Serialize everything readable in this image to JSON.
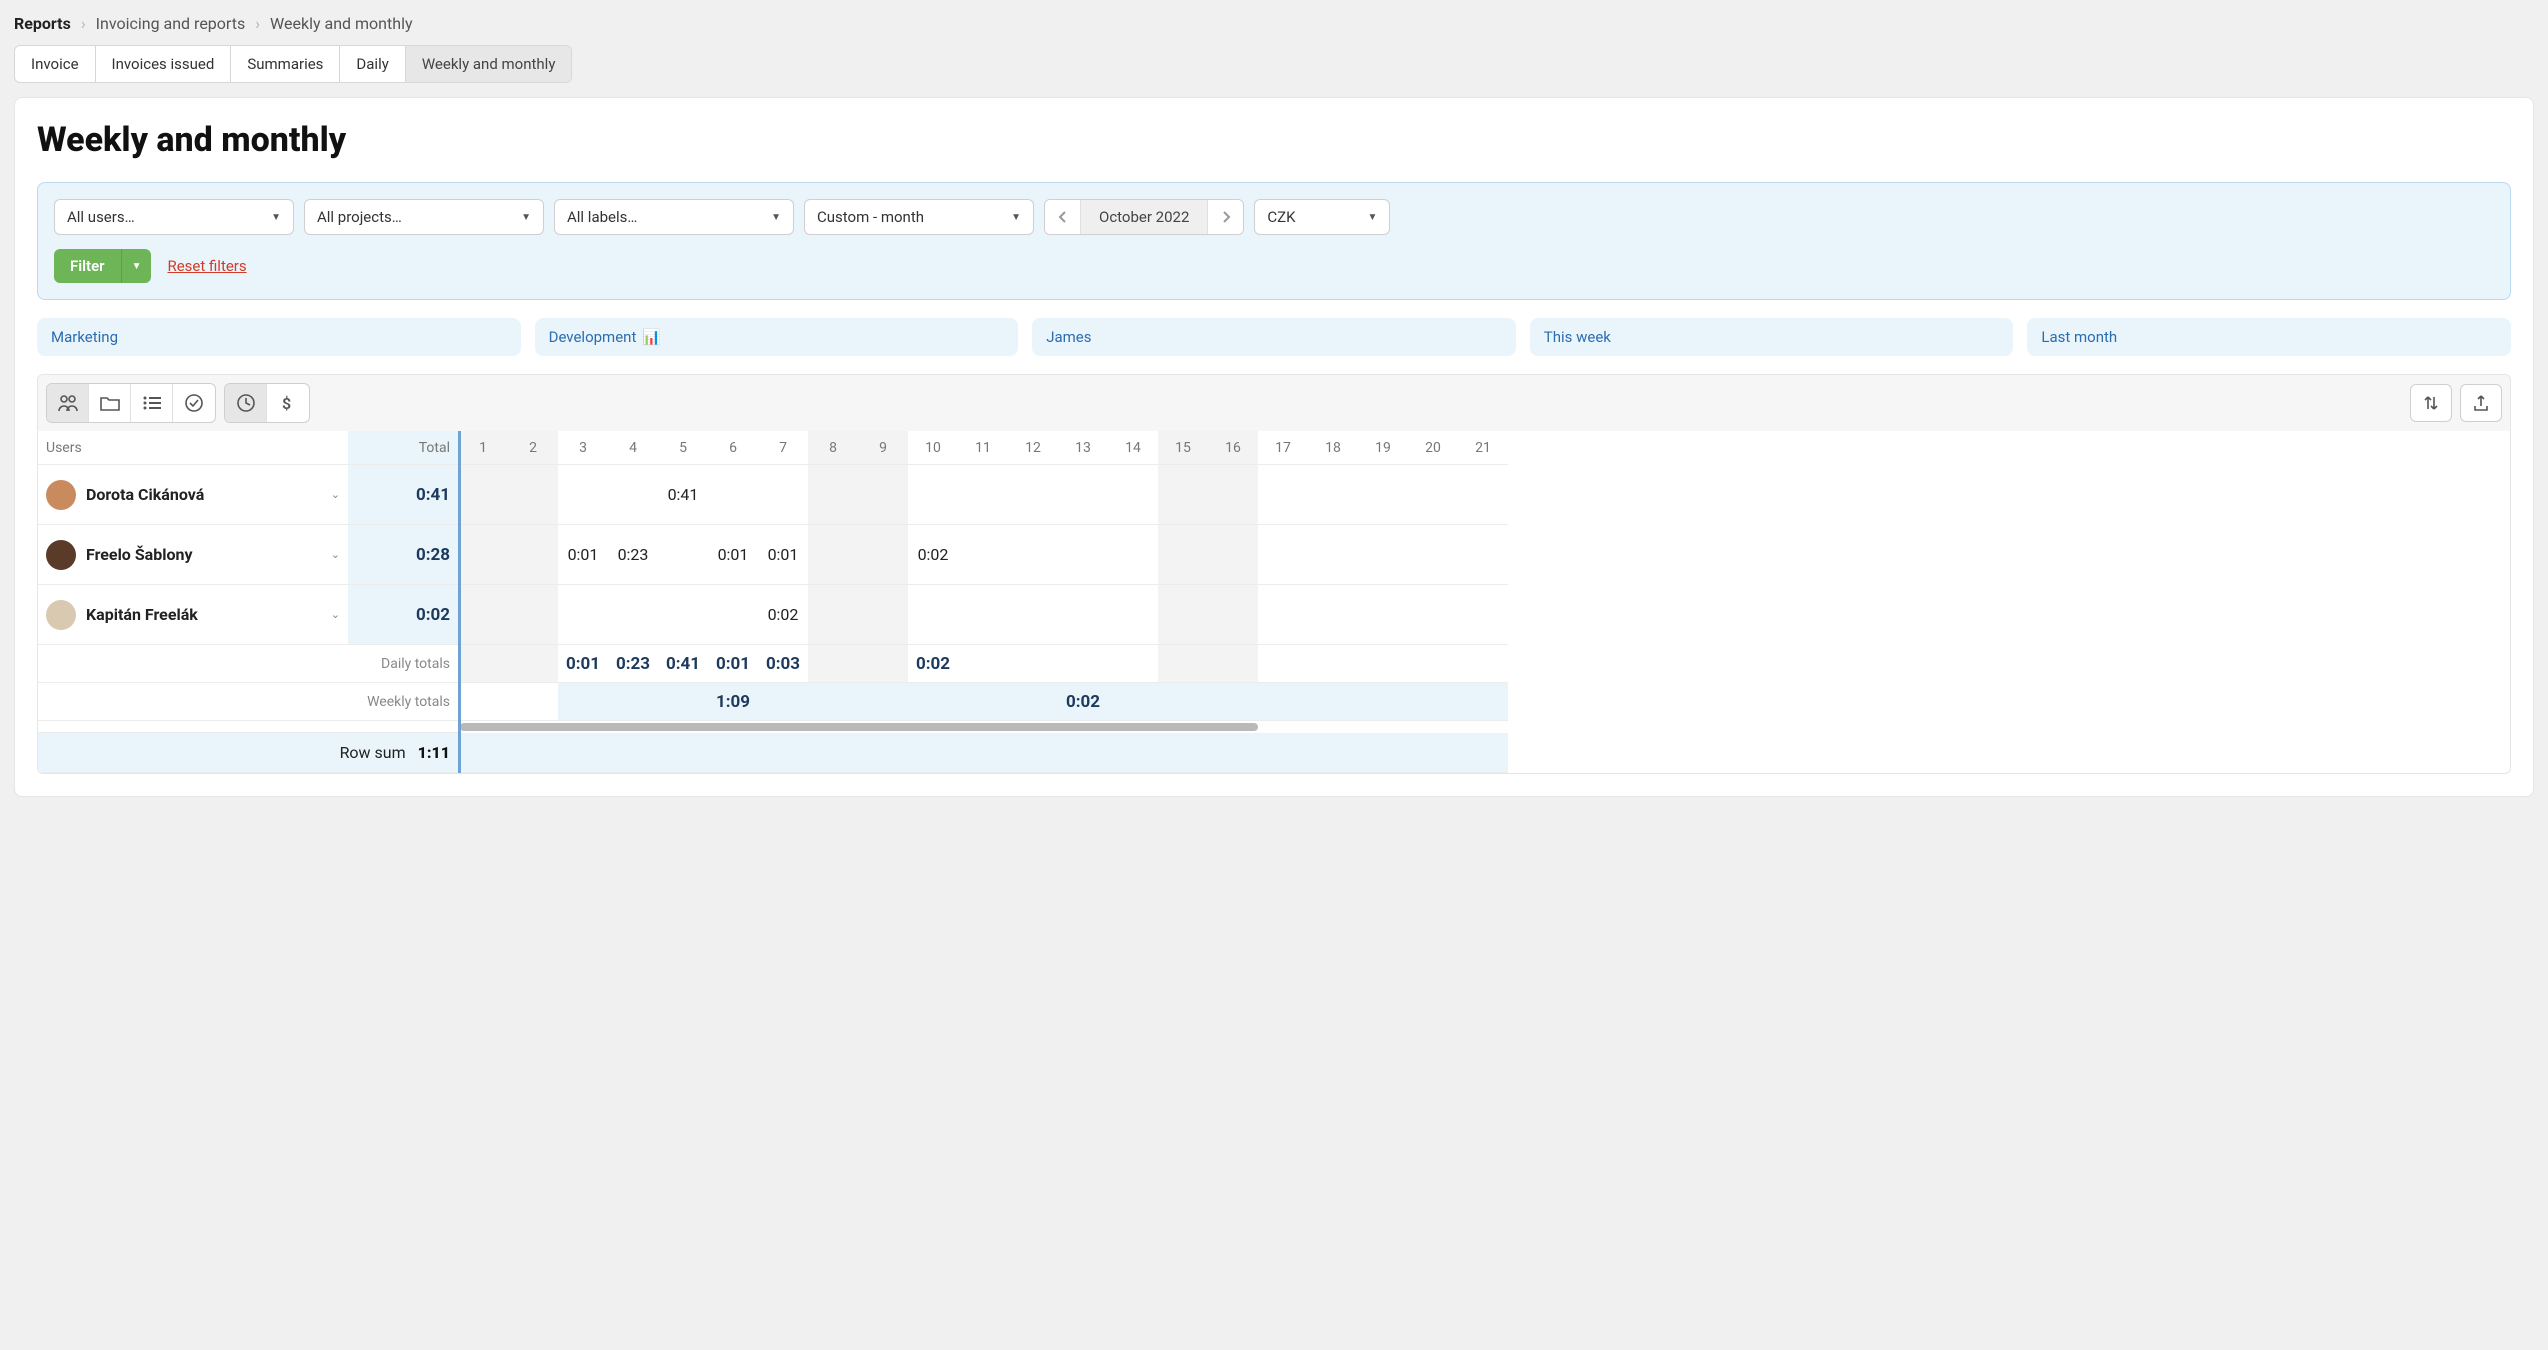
{
  "breadcrumb": [
    {
      "label": "Reports",
      "root": true
    },
    {
      "label": "Invoicing and reports"
    },
    {
      "label": "Weekly and monthly"
    }
  ],
  "tabs": [
    {
      "label": "Invoice",
      "active": false
    },
    {
      "label": "Invoices issued",
      "active": false
    },
    {
      "label": "Summaries",
      "active": false
    },
    {
      "label": "Daily",
      "active": false
    },
    {
      "label": "Weekly and monthly",
      "active": true
    }
  ],
  "page_title": "Weekly and monthly",
  "filters": {
    "users": "All users…",
    "projects": "All projects…",
    "labels": "All labels…",
    "period": "Custom - month",
    "date_label": "October 2022",
    "currency": "CZK",
    "filter_btn": "Filter",
    "reset": "Reset filters"
  },
  "quick_filters": [
    {
      "label": "Marketing"
    },
    {
      "label": "Development",
      "icon": "📊"
    },
    {
      "label": "James"
    },
    {
      "label": "This week"
    },
    {
      "label": "Last month"
    }
  ],
  "table": {
    "users_header": "Users",
    "total_header": "Total",
    "days": [
      1,
      2,
      3,
      4,
      5,
      6,
      7,
      8,
      9,
      10,
      11,
      12,
      13,
      14,
      15,
      16,
      17,
      18,
      19,
      20,
      21
    ],
    "weekend_cols": [
      [
        0,
        2
      ],
      [
        7,
        2
      ],
      [
        14,
        2
      ]
    ],
    "rows": [
      {
        "name": "Dorota Cikánová",
        "avatar_bg": "#c98b5e",
        "total": "0:41",
        "cells": {
          "5": "0:41"
        }
      },
      {
        "name": "Freelo Šablony",
        "avatar_bg": "#5a3b2a",
        "total": "0:28",
        "cells": {
          "3": "0:01",
          "4": "0:23",
          "6": "0:01",
          "7": "0:01",
          "10": "0:02"
        }
      },
      {
        "name": "Kapitán Freelák",
        "avatar_bg": "#d8c9b0",
        "total": "0:02",
        "cells": {
          "7": "0:02"
        }
      }
    ],
    "daily_totals_label": "Daily totals",
    "daily_totals": {
      "3": "0:01",
      "4": "0:23",
      "5": "0:41",
      "6": "0:01",
      "7": "0:03",
      "10": "0:02"
    },
    "weekly_totals_label": "Weekly totals",
    "weekly_totals": [
      {
        "span_start": 3,
        "span": 7,
        "value": "1:09"
      },
      {
        "span_start": 10,
        "span": 7,
        "value": "0:02"
      }
    ],
    "row_sum_label": "Row sum",
    "row_sum_value": "1:11"
  },
  "select_widths": {
    "users": "240px",
    "projects": "240px",
    "labels": "240px",
    "period": "230px",
    "currency": "136px"
  }
}
